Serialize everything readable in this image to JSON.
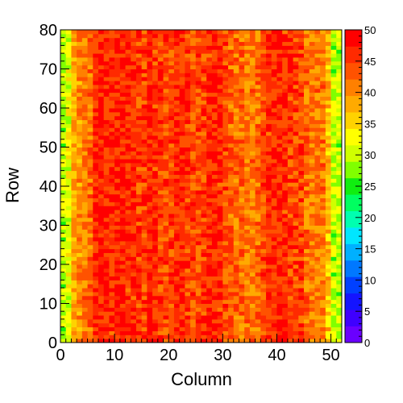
{
  "chart_data": {
    "type": "heatmap",
    "xlabel": "Column",
    "ylabel": "Row",
    "x_range": [
      0,
      52
    ],
    "y_range": [
      0,
      80
    ],
    "x_ticks": [
      0,
      10,
      20,
      30,
      40,
      50
    ],
    "y_ticks": [
      0,
      10,
      20,
      30,
      40,
      50,
      60,
      70,
      80
    ],
    "z_range": [
      0,
      50
    ],
    "z_ticks": [
      0,
      5,
      10,
      15,
      20,
      25,
      30,
      35,
      40,
      45,
      50
    ],
    "grid": false,
    "legend": "color bar on right",
    "n_columns": 52,
    "n_rows": 80,
    "column_profile": [
      30,
      32,
      38,
      40,
      41,
      42,
      47,
      47,
      46,
      46,
      47,
      47,
      46,
      46,
      45,
      45,
      47,
      46,
      45,
      44,
      44,
      46,
      46,
      45,
      44,
      44,
      45,
      46,
      46,
      46,
      44,
      43,
      42,
      42,
      41,
      41,
      42,
      44,
      46,
      46,
      47,
      46,
      45,
      45,
      45,
      42,
      41,
      41,
      41,
      37,
      30,
      30
    ],
    "notes": "Cell values fluctuate around the per-column mean (range roughly 28–50); low values at columns 0 and 50–51, a moderate band around columns 30–36 and 45–48."
  },
  "palette": {
    "colors": [
      "#6a00ff",
      "#3f00ff",
      "#1414ff",
      "#0040ff",
      "#0078ff",
      "#00b0ff",
      "#00e6ff",
      "#00ffb0",
      "#00ff60",
      "#10ee10",
      "#80ff00",
      "#d0ff00",
      "#ffff00",
      "#ffd200",
      "#ffaa00",
      "#ff8000",
      "#ff5200",
      "#ff2a00",
      "#ff0000"
    ]
  }
}
